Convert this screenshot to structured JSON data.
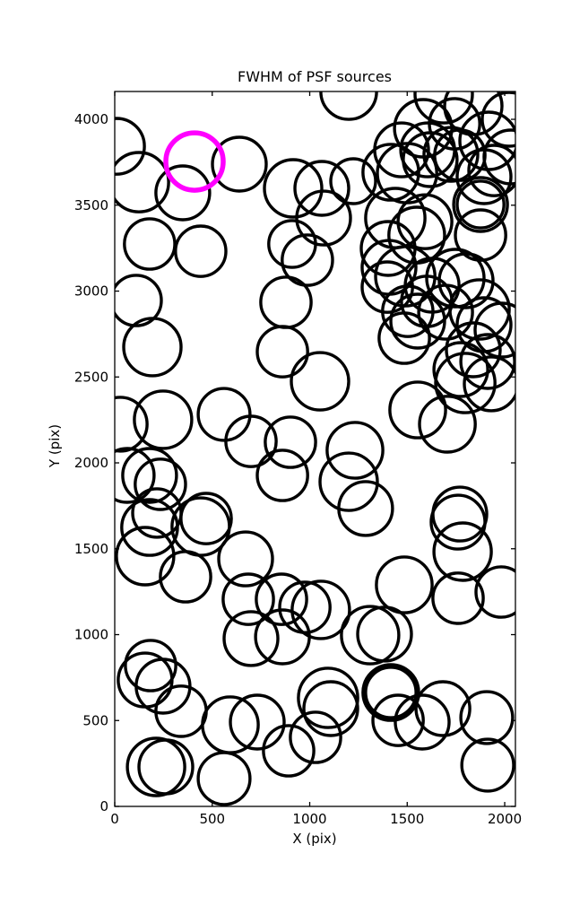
{
  "figure": {
    "title": "FWHM of PSF sources",
    "xlabel": "X (pix)",
    "ylabel": "Y (pix)"
  },
  "colors": {
    "background": "#ffffff",
    "frame": "#000000",
    "circle_stroke": "#000000",
    "highlight_stroke": "#FF00FF"
  },
  "chart_data": {
    "type": "scatter",
    "title": "FWHM of PSF sources",
    "xlabel": "X (pix)",
    "ylabel": "Y (pix)",
    "xlim": [
      0,
      2055
    ],
    "ylim": [
      0,
      4162
    ],
    "xticks": [
      0,
      500,
      1000,
      1500,
      2000
    ],
    "yticks": [
      0,
      500,
      1000,
      1500,
      2000,
      2500,
      3000,
      3500,
      4000
    ],
    "grid": false,
    "legend": "none",
    "marker": "open-circle",
    "note": "circles = [x_pix, y_pix, radius_in_x_units]; open black circles mark PSF sources, one magenta highlighted circle",
    "circles": [
      [
        9,
        3843,
        143
      ],
      [
        124,
        3634,
        152
      ],
      [
        639,
        3739,
        138
      ],
      [
        349,
        3572,
        138
      ],
      [
        915,
        3598,
        147
      ],
      [
        179,
        3274,
        129
      ],
      [
        441,
        3232,
        129
      ],
      [
        910,
        3274,
        120
      ],
      [
        988,
        3180,
        129
      ],
      [
        110,
        2945,
        129
      ],
      [
        193,
        2674,
        147
      ],
      [
        878,
        2935,
        129
      ],
      [
        860,
        2647,
        129
      ],
      [
        28,
        2225,
        138
      ],
      [
        248,
        2251,
        147
      ],
      [
        561,
        2282,
        133
      ],
      [
        699,
        2125,
        129
      ],
      [
        901,
        2120,
        129
      ],
      [
        860,
        1927,
        129
      ],
      [
        64,
        1927,
        138
      ],
      [
        179,
        1927,
        138
      ],
      [
        234,
        1875,
        129
      ],
      [
        216,
        1708,
        124
      ],
      [
        469,
        1676,
        129
      ],
      [
        156,
        1457,
        147
      ],
      [
        179,
        1624,
        143
      ],
      [
        441,
        1629,
        147
      ],
      [
        363,
        1337,
        129
      ],
      [
        671,
        1441,
        138
      ],
      [
        685,
        1206,
        129
      ],
      [
        855,
        1206,
        129
      ],
      [
        699,
        977,
        138
      ],
      [
        860,
        987,
        138
      ],
      [
        975,
        1159,
        129
      ],
      [
        184,
        820,
        129
      ],
      [
        156,
        736,
        138
      ],
      [
        248,
        700,
        138
      ],
      [
        340,
        554,
        129
      ],
      [
        593,
        475,
        143
      ],
      [
        731,
        491,
        138
      ],
      [
        892,
        324,
        129
      ],
      [
        212,
        230,
        147
      ],
      [
        262,
        230,
        138
      ],
      [
        561,
        162,
        133
      ],
      [
        1200,
        4162,
        143
      ],
      [
        1062,
        3598,
        138
      ],
      [
        1071,
        3425,
        138
      ],
      [
        1223,
        3640,
        115
      ],
      [
        1416,
        3692,
        143
      ],
      [
        1499,
        3687,
        152
      ],
      [
        1439,
        3425,
        152
      ],
      [
        1591,
        3404,
        138
      ],
      [
        1605,
        3822,
        138
      ],
      [
        1724,
        3796,
        138
      ],
      [
        1687,
        4146,
        147
      ],
      [
        1839,
        4078,
        147
      ],
      [
        1582,
        3948,
        147
      ],
      [
        1743,
        3974,
        129
      ],
      [
        1471,
        3822,
        138
      ],
      [
        1618,
        3765,
        138
      ],
      [
        1770,
        3791,
        129
      ],
      [
        1917,
        3875,
        147
      ],
      [
        2023,
        4000,
        138
      ],
      [
        2032,
        3781,
        138
      ],
      [
        1894,
        3666,
        138
      ],
      [
        1876,
        3504,
        138
      ],
      [
        1876,
        3504,
        120
      ],
      [
        1945,
        3702,
        129
      ],
      [
        1549,
        3326,
        143
      ],
      [
        1876,
        3326,
        129
      ],
      [
        1402,
        3248,
        138
      ],
      [
        1407,
        3138,
        138
      ],
      [
        1490,
        3086,
        152
      ],
      [
        1398,
        3023,
        129
      ],
      [
        1628,
        3034,
        138
      ],
      [
        1747,
        3076,
        147
      ],
      [
        1802,
        3060,
        138
      ],
      [
        1600,
        2940,
        129
      ],
      [
        1503,
        2882,
        129
      ],
      [
        1554,
        2825,
        138
      ],
      [
        1485,
        2726,
        129
      ],
      [
        1697,
        2877,
        138
      ],
      [
        1871,
        2893,
        152
      ],
      [
        1894,
        2804,
        138
      ],
      [
        1986,
        2773,
        138
      ],
      [
        1839,
        2658,
        138
      ],
      [
        1913,
        2590,
        138
      ],
      [
        1775,
        2543,
        138
      ],
      [
        1053,
        2475,
        147
      ],
      [
        1554,
        2308,
        143
      ],
      [
        1706,
        2225,
        143
      ],
      [
        1798,
        2465,
        152
      ],
      [
        1931,
        2460,
        138
      ],
      [
        1232,
        2073,
        143
      ],
      [
        1200,
        1890,
        147
      ],
      [
        1287,
        1734,
        138
      ],
      [
        1770,
        1702,
        138
      ],
      [
        1761,
        1655,
        138
      ],
      [
        1784,
        1483,
        147
      ],
      [
        1485,
        1290,
        143
      ],
      [
        1761,
        1212,
        129
      ],
      [
        1982,
        1248,
        129
      ],
      [
        1057,
        1144,
        147
      ],
      [
        1384,
        1003,
        138
      ],
      [
        1310,
        997,
        147
      ],
      [
        1094,
        632,
        152
      ],
      [
        1108,
        569,
        138
      ],
      [
        1030,
        402,
        129
      ],
      [
        1416,
        663,
        143
      ],
      [
        1416,
        663,
        129
      ],
      [
        1453,
        501,
        129
      ],
      [
        1577,
        491,
        138
      ],
      [
        1683,
        569,
        138
      ],
      [
        1908,
        517,
        133
      ],
      [
        1913,
        240,
        133
      ]
    ],
    "highlight_circle": [
      409,
      3754,
      147
    ]
  }
}
